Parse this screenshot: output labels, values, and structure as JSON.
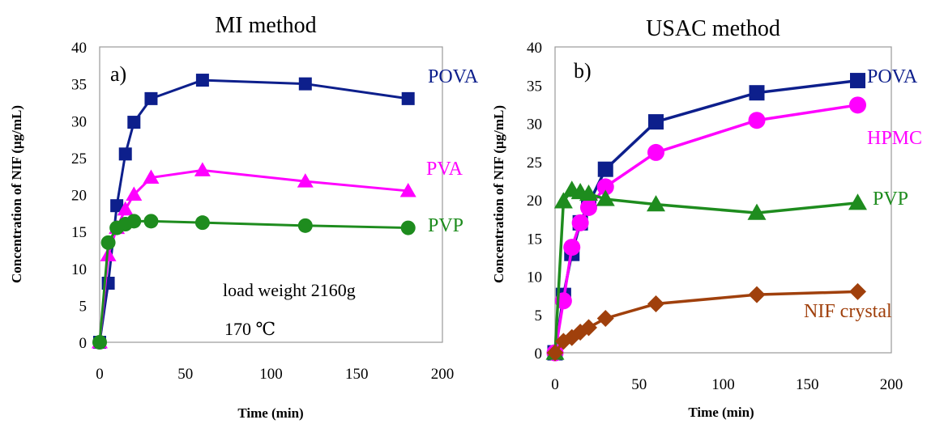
{
  "chart_data": [
    {
      "type": "line",
      "panel": "a)",
      "title": "MI method",
      "xlabel": "Time (min)",
      "ylabel": "Concentration of NIF (μg/mL)",
      "xlim": [
        0,
        200
      ],
      "ylim": [
        0,
        40
      ],
      "xticks": [
        "0",
        "50",
        "100",
        "150",
        "200"
      ],
      "yticks": [
        "0",
        "5",
        "10",
        "15",
        "20",
        "25",
        "30",
        "35",
        "40"
      ],
      "annotations": [
        "load weight 2160g",
        "170 ℃"
      ],
      "grid": false,
      "series": [
        {
          "name": "POVA",
          "color": "#0d1f8c",
          "marker": "square",
          "x": [
            0,
            5,
            10,
            15,
            20,
            30,
            60,
            120,
            180
          ],
          "y": [
            0,
            8.0,
            18.5,
            25.5,
            29.8,
            33.0,
            35.5,
            35.0,
            33.0
          ]
        },
        {
          "name": "PVA",
          "color": "#ff00ff",
          "marker": "triangle",
          "x": [
            0,
            5,
            10,
            15,
            20,
            30,
            60,
            120,
            180
          ],
          "y": [
            0,
            11.8,
            15.5,
            18.0,
            20.0,
            22.3,
            23.3,
            21.8,
            20.5
          ]
        },
        {
          "name": "PVP",
          "color": "#1e8c1e",
          "marker": "circle",
          "x": [
            0,
            5,
            10,
            15,
            20,
            30,
            60,
            120,
            180
          ],
          "y": [
            0,
            13.5,
            15.5,
            16.0,
            16.4,
            16.4,
            16.2,
            15.8,
            15.5
          ]
        }
      ]
    },
    {
      "type": "line",
      "panel": "b)",
      "title": "USAC method",
      "xlabel": "Time (min)",
      "ylabel": "Concentration of NIF (μg/mL)",
      "xlim": [
        0,
        200
      ],
      "ylim": [
        0,
        40
      ],
      "xticks": [
        "0",
        "50",
        "100",
        "150",
        "200"
      ],
      "yticks": [
        "0",
        "5",
        "10",
        "15",
        "20",
        "25",
        "30",
        "35",
        "40"
      ],
      "grid": false,
      "series": [
        {
          "name": "POVA",
          "color": "#0d1f8c",
          "marker": "square",
          "x": [
            0,
            5,
            10,
            15,
            20,
            30,
            60,
            120,
            180
          ],
          "y": [
            0,
            7.5,
            13.0,
            17.0,
            19.5,
            24.0,
            30.2,
            34.0,
            35.6
          ]
        },
        {
          "name": "HPMC",
          "color": "#ff00ff",
          "marker": "circle",
          "x": [
            0,
            5,
            10,
            15,
            20,
            30,
            60,
            120,
            180
          ],
          "y": [
            0,
            6.8,
            13.8,
            17.0,
            19.0,
            21.7,
            26.2,
            30.4,
            32.4
          ]
        },
        {
          "name": "PVP",
          "color": "#1e8c1e",
          "marker": "triangle",
          "x": [
            0,
            5,
            10,
            15,
            20,
            30,
            60,
            120,
            180
          ],
          "y": [
            0,
            19.8,
            21.3,
            21.0,
            20.8,
            20.1,
            19.4,
            18.3,
            19.6
          ]
        },
        {
          "name": "NIF crystal",
          "color": "#a0400c",
          "marker": "diamond",
          "x": [
            0,
            5,
            10,
            15,
            20,
            30,
            60,
            120,
            180
          ],
          "y": [
            0,
            1.5,
            2.0,
            2.7,
            3.3,
            4.5,
            6.4,
            7.6,
            8.0
          ]
        }
      ]
    }
  ]
}
